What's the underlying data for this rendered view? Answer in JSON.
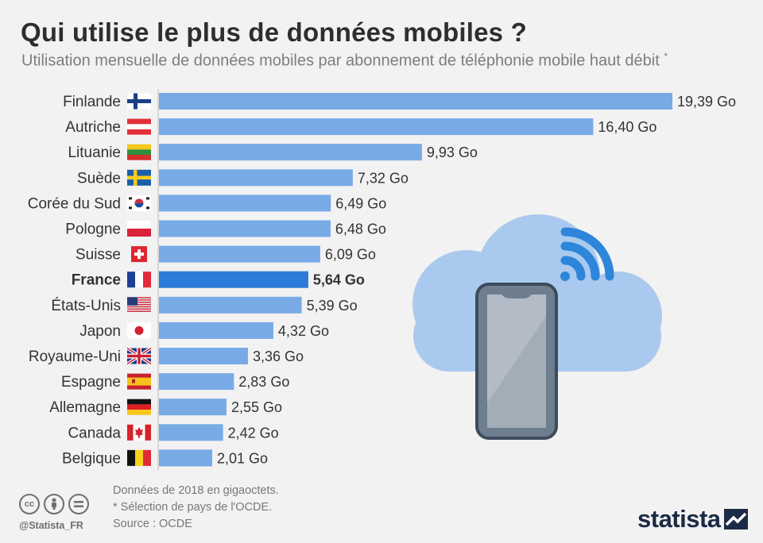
{
  "header": {
    "title": "Qui utilise le plus de données mobiles ?",
    "subtitle": "Utilisation mensuelle de données mobiles par abonnement de téléphonie mobile haut débit",
    "subtitle_mark": "*"
  },
  "chart_data": {
    "type": "bar",
    "orientation": "horizontal",
    "categories": [
      "Finlande",
      "Autriche",
      "Lituanie",
      "Suède",
      "Corée du Sud",
      "Pologne",
      "Suisse",
      "France",
      "États-Unis",
      "Japon",
      "Royaume-Uni",
      "Espagne",
      "Allemagne",
      "Canada",
      "Belgique"
    ],
    "values": [
      19.39,
      16.4,
      9.93,
      7.32,
      6.49,
      6.48,
      6.09,
      5.64,
      5.39,
      4.32,
      3.36,
      2.83,
      2.55,
      2.42,
      2.01
    ],
    "value_labels": [
      "19,39 Go",
      "16,40 Go",
      "9,93 Go",
      "7,32 Go",
      "6,49 Go",
      "6,48 Go",
      "6,09 Go",
      "5,64 Go",
      "5,39 Go",
      "4,32 Go",
      "3,36 Go",
      "2,83 Go",
      "2,55 Go",
      "2,42 Go",
      "2,01 Go"
    ],
    "flag_icons": [
      "flag-finland-icon",
      "flag-austria-icon",
      "flag-lithuania-icon",
      "flag-sweden-icon",
      "flag-south-korea-icon",
      "flag-poland-icon",
      "flag-switzerland-icon",
      "flag-france-icon",
      "flag-usa-icon",
      "flag-japan-icon",
      "flag-uk-icon",
      "flag-spain-icon",
      "flag-germany-icon",
      "flag-canada-icon",
      "flag-belgium-icon"
    ],
    "highlight": "France",
    "xlim": [
      0,
      19.39
    ],
    "grid": false,
    "colors": {
      "bar": "#78aae6",
      "highlight": "#2d7bd8",
      "axis": "#cccccc"
    }
  },
  "footer": {
    "notes": [
      "Données de 2018 en gigaoctets.",
      "* Sélection de pays de l'OCDE.",
      "Source : OCDE"
    ],
    "handle": "@Statista_FR",
    "brand": "statista",
    "license_icons": [
      "cc-icon",
      "attribution-icon",
      "no-derivatives-icon"
    ]
  }
}
